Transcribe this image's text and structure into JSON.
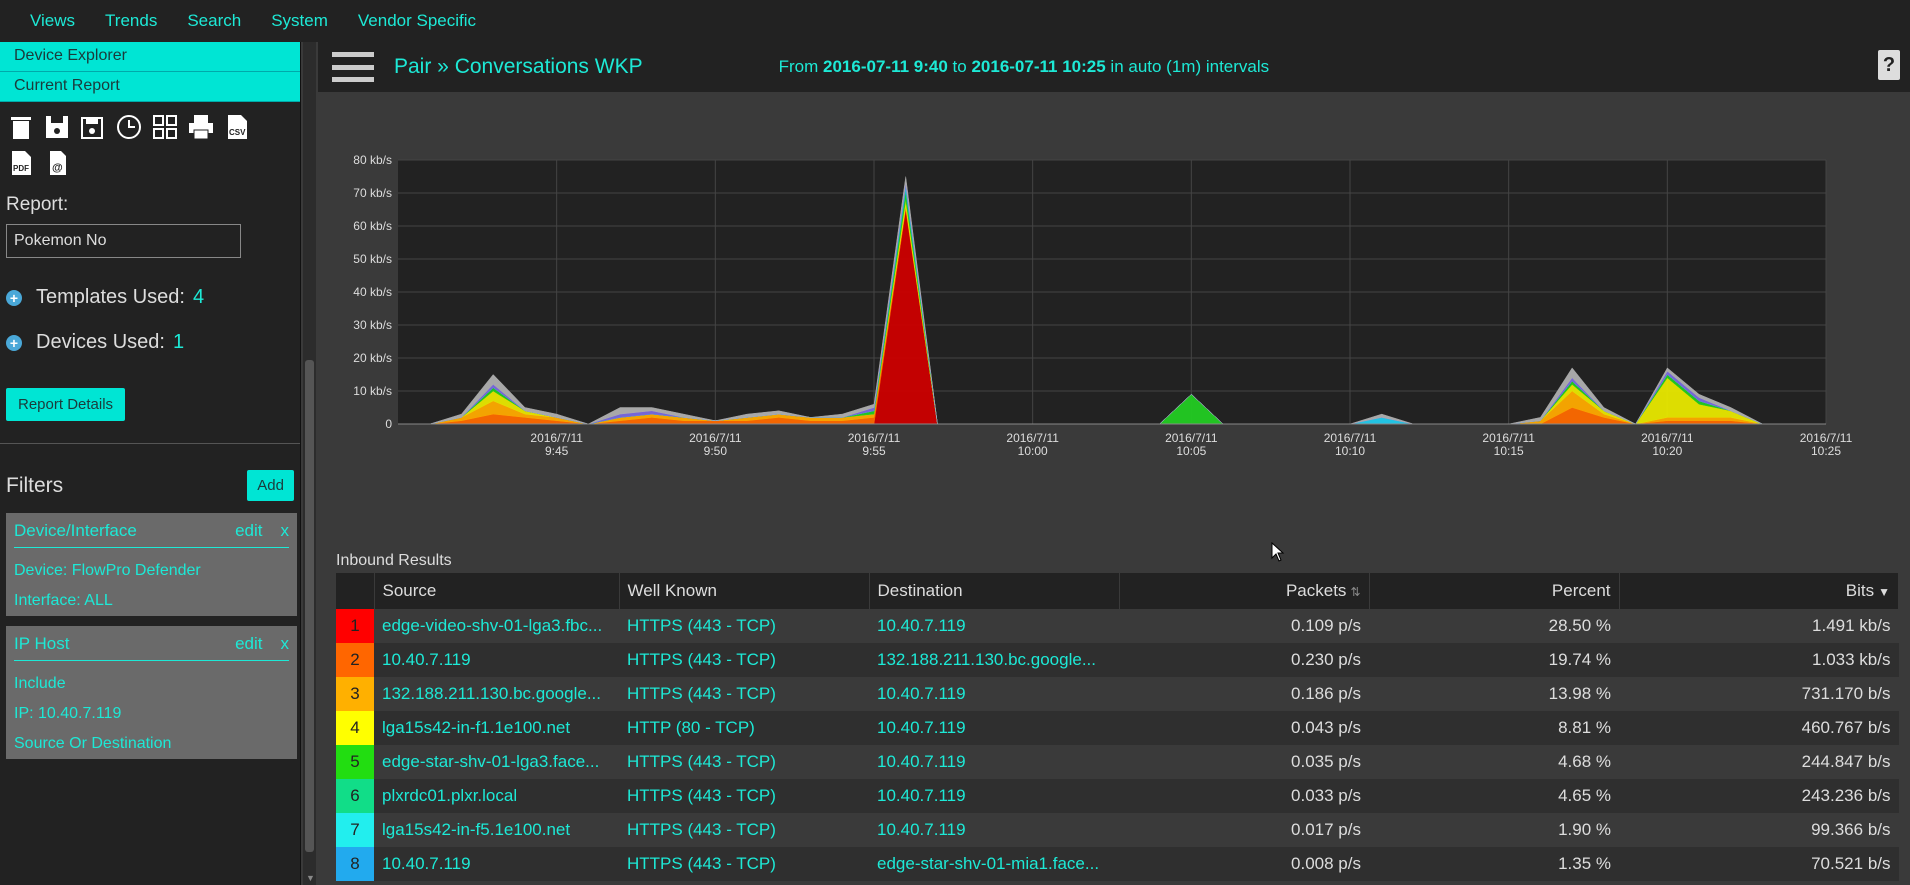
{
  "topnav": [
    "Views",
    "Trends",
    "Search",
    "System",
    "Vendor Specific"
  ],
  "sidebar": {
    "links": [
      "Device Explorer",
      "Current Report"
    ],
    "toolbar_icons": [
      "trash-icon",
      "save-icon",
      "save-as-icon",
      "clock-icon",
      "grid-icon",
      "print-icon",
      "csv-icon",
      "pdf-icon",
      "email-icon"
    ],
    "report_label": "Report:",
    "report_value": "Pokemon No",
    "templates_label": "Templates Used:",
    "templates_count": "4",
    "devices_label": "Devices Used:",
    "devices_count": "1",
    "details_button": "Report Details",
    "filters_title": "Filters",
    "add_button": "Add",
    "filters": [
      {
        "title": "Device/Interface",
        "edit": "edit",
        "remove": "x",
        "lines": [
          "Device: FlowPro Defender",
          "Interface: ALL"
        ]
      },
      {
        "title": "IP Host",
        "edit": "edit",
        "remove": "x",
        "lines": [
          "Include",
          "IP: 10.40.7.119",
          "Source Or Destination"
        ]
      }
    ]
  },
  "header": {
    "title": "Pair » Conversations WKP",
    "range_from_label": "From",
    "range_from": "2016-07-11 9:40",
    "range_to_label": "to",
    "range_to": "2016-07-11 10:25",
    "range_suffix": "in auto (1m) intervals",
    "help": "?"
  },
  "chart_data": {
    "type": "area",
    "stacked": true,
    "ylim": [
      0,
      80
    ],
    "yticks": [
      "0",
      "10 kb/s",
      "20 kb/s",
      "30 kb/s",
      "40 kb/s",
      "50 kb/s",
      "60 kb/s",
      "70 kb/s",
      "80 kb/s"
    ],
    "xticks": [
      [
        "2016/7/11",
        "9:45"
      ],
      [
        "2016/7/11",
        "9:50"
      ],
      [
        "2016/7/11",
        "9:55"
      ],
      [
        "2016/7/11",
        "10:00"
      ],
      [
        "2016/7/11",
        "10:05"
      ],
      [
        "2016/7/11",
        "10:10"
      ],
      [
        "2016/7/11",
        "10:15"
      ],
      [
        "2016/7/11",
        "10:20"
      ],
      [
        "2016/7/11",
        "10:25"
      ]
    ],
    "x_minutes": [
      40,
      41,
      42,
      43,
      44,
      45,
      46,
      47,
      48,
      49,
      50,
      51,
      52,
      53,
      54,
      55,
      56,
      57,
      58,
      59,
      60,
      61,
      62,
      63,
      64,
      65,
      66,
      67,
      68,
      69,
      70,
      71,
      72,
      73,
      74,
      75,
      76,
      77,
      78,
      79,
      80,
      81,
      82,
      83,
      84,
      85
    ],
    "series": [
      {
        "color": "#cc0000",
        "values": [
          0,
          0,
          0,
          0,
          0,
          0,
          0,
          0,
          0,
          0,
          0,
          0,
          0,
          0,
          0,
          0,
          65,
          0,
          0,
          0,
          0,
          0,
          0,
          0,
          0,
          0,
          0,
          0,
          0,
          0,
          0,
          0,
          0,
          0,
          0,
          0,
          0,
          0,
          0,
          0,
          0,
          0,
          0,
          0,
          0,
          0
        ]
      },
      {
        "color": "#ff6a00",
        "values": [
          0,
          0,
          1,
          3,
          2,
          1,
          0,
          1,
          2,
          1,
          1,
          1,
          2,
          1,
          1,
          2,
          1,
          0,
          0,
          0,
          0,
          0,
          0,
          0,
          0,
          0,
          0,
          0,
          0,
          0,
          0,
          0,
          0,
          0,
          0,
          0,
          0,
          5,
          2,
          0,
          1,
          1,
          1,
          0,
          0,
          0
        ]
      },
      {
        "color": "#ffaa00",
        "values": [
          0,
          0,
          1,
          4,
          1,
          1,
          0,
          1,
          1,
          1,
          0,
          1,
          1,
          1,
          1,
          1,
          0,
          0,
          0,
          0,
          0,
          0,
          0,
          0,
          0,
          0,
          0,
          0,
          0,
          0,
          0,
          0,
          0,
          0,
          0,
          0,
          1,
          5,
          1,
          0,
          1,
          1,
          1,
          0,
          0,
          0
        ]
      },
      {
        "color": "#e8e800",
        "values": [
          0,
          0,
          0,
          3,
          1,
          0,
          0,
          0,
          0,
          0,
          0,
          0,
          0,
          0,
          0,
          0,
          2,
          0,
          0,
          0,
          0,
          0,
          0,
          0,
          0,
          0,
          0,
          0,
          0,
          0,
          0,
          0,
          0,
          0,
          0,
          0,
          0,
          2,
          1,
          0,
          12,
          4,
          2,
          0,
          0,
          0
        ]
      },
      {
        "color": "#22cc22",
        "values": [
          0,
          0,
          0,
          1,
          0,
          0,
          0,
          0,
          0,
          0,
          0,
          0,
          0,
          0,
          0,
          1,
          2,
          0,
          0,
          0,
          0,
          0,
          0,
          0,
          0,
          9,
          0,
          0,
          0,
          0,
          0,
          0,
          0,
          0,
          0,
          0,
          0,
          1,
          0,
          0,
          1,
          1,
          0,
          0,
          0,
          0
        ]
      },
      {
        "color": "#1abc6a",
        "values": [
          0,
          0,
          0,
          0,
          0,
          0,
          0,
          0,
          0,
          0,
          0,
          0,
          0,
          0,
          0,
          0,
          1,
          0,
          0,
          0,
          0,
          0,
          0,
          0,
          0,
          0,
          0,
          0,
          0,
          0,
          0,
          0,
          0,
          0,
          0,
          0,
          0,
          0,
          0,
          0,
          0,
          0,
          0,
          0,
          0,
          0
        ]
      },
      {
        "color": "#22ccee",
        "values": [
          0,
          0,
          0,
          0,
          0,
          0,
          0,
          0,
          0,
          0,
          0,
          0,
          0,
          0,
          0,
          0,
          1,
          0,
          0,
          0,
          0,
          0,
          0,
          0,
          0,
          0,
          0,
          0,
          0,
          0,
          0,
          2,
          0,
          0,
          0,
          0,
          0,
          0,
          0,
          0,
          0,
          0,
          0,
          0,
          0,
          0
        ]
      },
      {
        "color": "#7a6ae0",
        "values": [
          0,
          0,
          0,
          1,
          0,
          0,
          0,
          1,
          1,
          0,
          0,
          0,
          0,
          0,
          0,
          1,
          1,
          0,
          0,
          0,
          0,
          0,
          0,
          0,
          0,
          0,
          0,
          0,
          0,
          0,
          0,
          0,
          0,
          0,
          0,
          0,
          0,
          1,
          0,
          0,
          1,
          1,
          0,
          0,
          0,
          0
        ]
      },
      {
        "color": "#b0b0b0",
        "values": [
          0,
          0,
          1,
          3,
          1,
          1,
          0,
          2,
          1,
          1,
          0,
          1,
          1,
          0,
          1,
          1,
          2,
          0,
          0,
          0,
          0,
          0,
          0,
          0,
          0,
          0,
          0,
          0,
          0,
          0,
          0,
          1,
          0,
          0,
          0,
          0,
          1,
          3,
          1,
          0,
          1,
          1,
          1,
          0,
          0,
          0
        ]
      }
    ]
  },
  "results": {
    "label": "Inbound Results",
    "columns": [
      "",
      "Source",
      "Well Known",
      "Destination",
      "Packets",
      "Percent",
      "Bits"
    ],
    "rows": [
      {
        "idx": "1",
        "color": "#ff0000",
        "source": "edge-video-shv-01-lga3.fbc...",
        "wk": "HTTPS (443 - TCP)",
        "dest": "10.40.7.119",
        "packets": "0.109 p/s",
        "percent": "28.50 %",
        "bits": "1.491 kb/s"
      },
      {
        "idx": "2",
        "color": "#ff6600",
        "source": "10.40.7.119",
        "wk": "HTTPS (443 - TCP)",
        "dest": "132.188.211.130.bc.google...",
        "packets": "0.230 p/s",
        "percent": "19.74 %",
        "bits": "1.033 kb/s"
      },
      {
        "idx": "3",
        "color": "#ffb000",
        "source": "132.188.211.130.bc.google...",
        "wk": "HTTPS (443 - TCP)",
        "dest": "10.40.7.119",
        "packets": "0.186 p/s",
        "percent": "13.98 %",
        "bits": "731.170 b/s"
      },
      {
        "idx": "4",
        "color": "#ffff00",
        "source": "lga15s42-in-f1.1e100.net",
        "wk": "HTTP (80 - TCP)",
        "dest": "10.40.7.119",
        "packets": "0.043 p/s",
        "percent": "8.81 %",
        "bits": "460.767 b/s"
      },
      {
        "idx": "5",
        "color": "#22dd11",
        "source": "edge-star-shv-01-lga3.face...",
        "wk": "HTTPS (443 - TCP)",
        "dest": "10.40.7.119",
        "packets": "0.035 p/s",
        "percent": "4.68 %",
        "bits": "244.847 b/s"
      },
      {
        "idx": "6",
        "color": "#11dd88",
        "source": "plxrdc01.plxr.local",
        "wk": "HTTPS (443 - TCP)",
        "dest": "10.40.7.119",
        "packets": "0.033 p/s",
        "percent": "4.65 %",
        "bits": "243.236 b/s"
      },
      {
        "idx": "7",
        "color": "#22eeee",
        "source": "lga15s42-in-f5.1e100.net",
        "wk": "HTTPS (443 - TCP)",
        "dest": "10.40.7.119",
        "packets": "0.017 p/s",
        "percent": "1.90 %",
        "bits": "99.366 b/s"
      },
      {
        "idx": "8",
        "color": "#22aaee",
        "source": "10.40.7.119",
        "wk": "HTTPS (443 - TCP)",
        "dest": "edge-star-shv-01-mia1.face...",
        "packets": "0.008 p/s",
        "percent": "1.35 %",
        "bits": "70.521 b/s"
      }
    ]
  }
}
